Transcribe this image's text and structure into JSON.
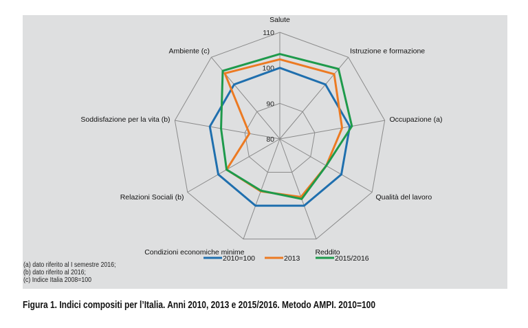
{
  "chart_data": {
    "type": "radar",
    "axes": [
      "Salute",
      "Istruzione e formazione",
      "Occupazione (a)",
      "Qualità del lavoro",
      "Reddito",
      "Condizioni economiche minime",
      "Relazioni Sociali (b)",
      "Soddisfazione per la vita (b)",
      "Ambiente (c)"
    ],
    "ticks": [
      "80",
      "90",
      "100",
      "110"
    ],
    "range": [
      80,
      110
    ],
    "grid": true,
    "legend_position": "bottom",
    "series": [
      {
        "name": "2010=100",
        "color": "#1f6fae",
        "values": [
          100,
          100,
          100,
          100,
          100,
          100,
          100,
          100,
          100
        ]
      },
      {
        "name": "2013",
        "color": "#ec7a22",
        "values": [
          102.4,
          103.8,
          97.8,
          95.1,
          97.4,
          95.7,
          97.3,
          88.7,
          104.1
        ]
      },
      {
        "name": "2015/2016",
        "color": "#1e9a4b",
        "values": [
          103.9,
          105.7,
          100.6,
          95.1,
          98,
          95.5,
          97.3,
          96.8,
          105
        ]
      }
    ]
  },
  "notes": [
    "(a) dato riferito al I semestre 2016;",
    "(b) dato riferito al 2016;",
    "(c) Indice Italia 2008=100"
  ],
  "caption": "Figura 1. Indici compositi per l’Italia. Anni 2010, 2013 e 2015/2016. Metodo AMPI. 2010=100"
}
